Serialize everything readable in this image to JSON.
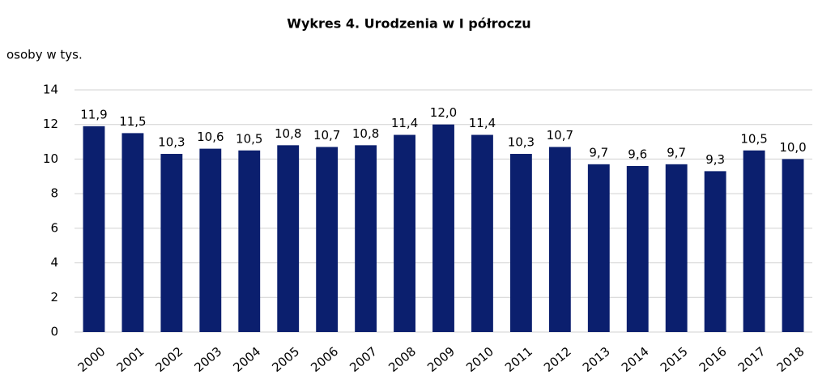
{
  "chart_data": {
    "type": "bar",
    "title": "Wykres 4. Urodzenia w I półroczu",
    "y_label": "osoby w tys.",
    "categories": [
      "2000",
      "2001",
      "2002",
      "2003",
      "2004",
      "2005",
      "2006",
      "2007",
      "2008",
      "2009",
      "2010",
      "2011",
      "2012",
      "2013",
      "2014",
      "2015",
      "2016",
      "2017",
      "2018"
    ],
    "values": [
      11.9,
      11.5,
      10.3,
      10.6,
      10.5,
      10.8,
      10.7,
      10.8,
      11.4,
      12.0,
      11.4,
      10.3,
      10.7,
      9.7,
      9.6,
      9.7,
      9.3,
      10.5,
      10.0
    ],
    "value_labels": [
      "11,9",
      "11,5",
      "10,3",
      "10,6",
      "10,5",
      "10,8",
      "10,7",
      "10,8",
      "11,4",
      "12,0",
      "11,4",
      "10,3",
      "10,7",
      "9,7",
      "9,6",
      "9,7",
      "9,3",
      "10,5",
      "10,0"
    ],
    "color": "#0b1f6e",
    "ylim": [
      0,
      14
    ],
    "yticks": [
      0,
      2,
      4,
      6,
      8,
      10,
      12,
      14
    ],
    "grid": true
  }
}
